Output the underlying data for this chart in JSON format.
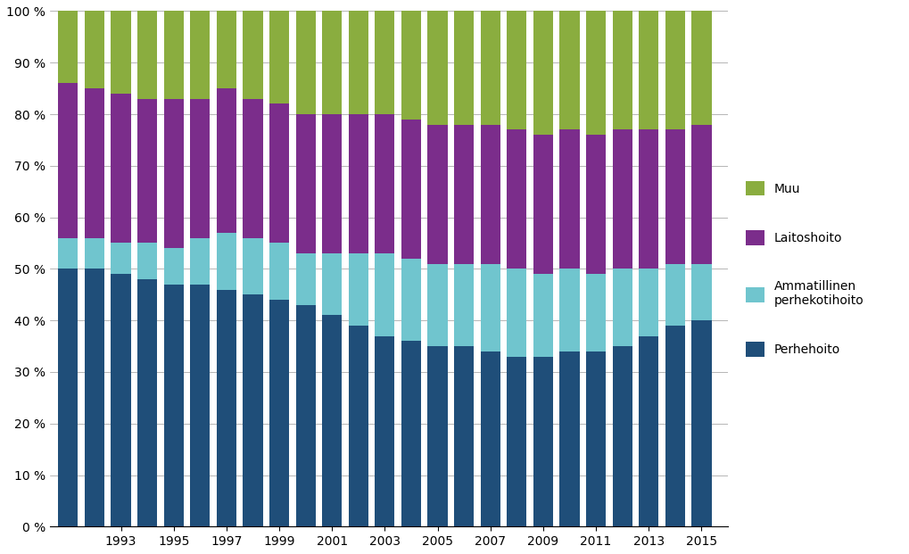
{
  "years": [
    1991,
    1992,
    1993,
    1994,
    1995,
    1996,
    1997,
    1998,
    1999,
    2000,
    2001,
    2002,
    2003,
    2004,
    2005,
    2006,
    2007,
    2008,
    2009,
    2010,
    2011,
    2012,
    2013,
    2014,
    2015
  ],
  "perhehoito": [
    50,
    50,
    49,
    48,
    47,
    47,
    46,
    45,
    44,
    43,
    41,
    39,
    37,
    36,
    35,
    35,
    34,
    33,
    33,
    34,
    34,
    35,
    37,
    39,
    40
  ],
  "ammatillinen": [
    6,
    6,
    6,
    7,
    7,
    9,
    11,
    11,
    11,
    10,
    12,
    14,
    16,
    16,
    16,
    16,
    17,
    17,
    16,
    16,
    15,
    15,
    13,
    12,
    11
  ],
  "laitoshoito": [
    30,
    29,
    29,
    28,
    29,
    27,
    28,
    27,
    27,
    27,
    27,
    27,
    27,
    27,
    27,
    27,
    27,
    27,
    27,
    27,
    27,
    27,
    27,
    26,
    27
  ],
  "muu": [
    14,
    15,
    16,
    17,
    17,
    17,
    15,
    17,
    18,
    20,
    20,
    20,
    20,
    21,
    22,
    22,
    22,
    23,
    24,
    23,
    24,
    23,
    23,
    23,
    22
  ],
  "colors": {
    "perhehoito": "#1F4E79",
    "ammatillinen": "#70C5CE",
    "laitoshoito": "#7B2D8B",
    "muu": "#8AAD3F"
  },
  "legend_labels": [
    "Muu",
    "Laitoshoito",
    "Ammatillinen\nperhekotihoito",
    "Perhehoito"
  ],
  "ytick_labels": [
    "0 %",
    "10 %",
    "20 %",
    "30 %",
    "40 %",
    "50 %",
    "60 %",
    "70 %",
    "80 %",
    "90 %",
    "100 %"
  ],
  "xtick_labels": [
    "1993",
    "1995",
    "1997",
    "1999",
    "2001",
    "2003",
    "2005",
    "2007",
    "2009",
    "2011",
    "2013",
    "2015"
  ],
  "xtick_positions": [
    1993,
    1995,
    1997,
    1999,
    2001,
    2003,
    2005,
    2007,
    2009,
    2011,
    2013,
    2015
  ]
}
